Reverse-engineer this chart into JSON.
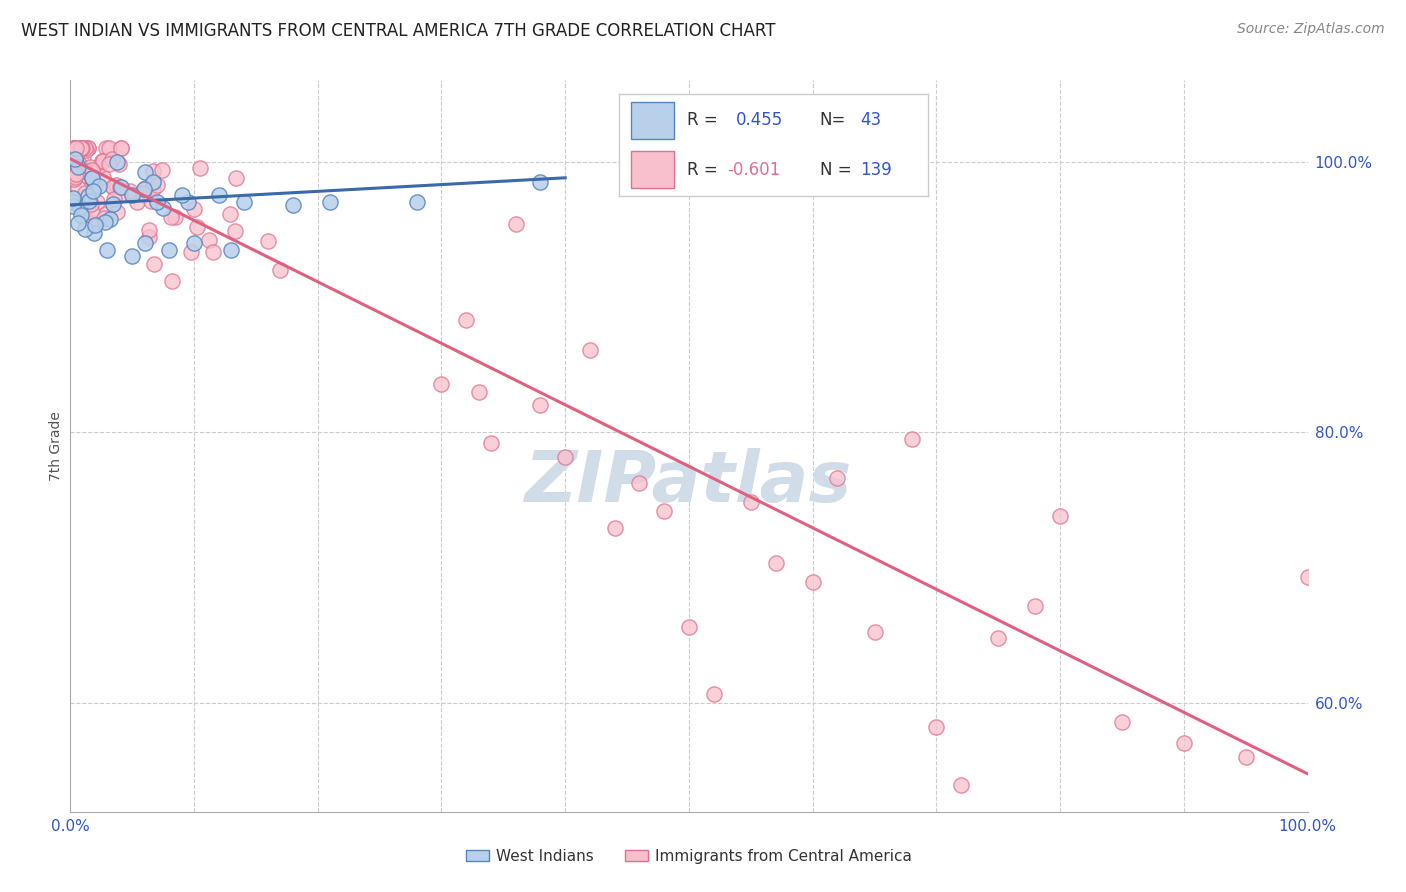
{
  "title": "WEST INDIAN VS IMMIGRANTS FROM CENTRAL AMERICA 7TH GRADE CORRELATION CHART",
  "source": "Source: ZipAtlas.com",
  "ylabel": "7th Grade",
  "legend_label_blue": "West Indians",
  "legend_label_pink": "Immigrants from Central America",
  "blue_face_color": "#b8d0ea",
  "blue_edge_color": "#5585c0",
  "pink_face_color": "#f8c0cc",
  "pink_edge_color": "#e07090",
  "blue_line_color": "#3a6aaa",
  "pink_line_color": "#e06080",
  "axis_label_color": "#3355cc",
  "grid_color": "#cccccc",
  "background_color": "#ffffff",
  "title_fontsize": 12,
  "source_fontsize": 10,
  "watermark_color": "#d0dde8",
  "watermark_fontsize": 52,
  "xlim": [
    0.0,
    1.0
  ],
  "ylim": [
    0.52,
    1.06
  ],
  "blue_line_x": [
    0.0,
    0.4
  ],
  "blue_line_y": [
    0.968,
    0.988
  ],
  "pink_line_x": [
    0.0,
    1.0
  ],
  "pink_line_y": [
    1.002,
    0.548
  ]
}
